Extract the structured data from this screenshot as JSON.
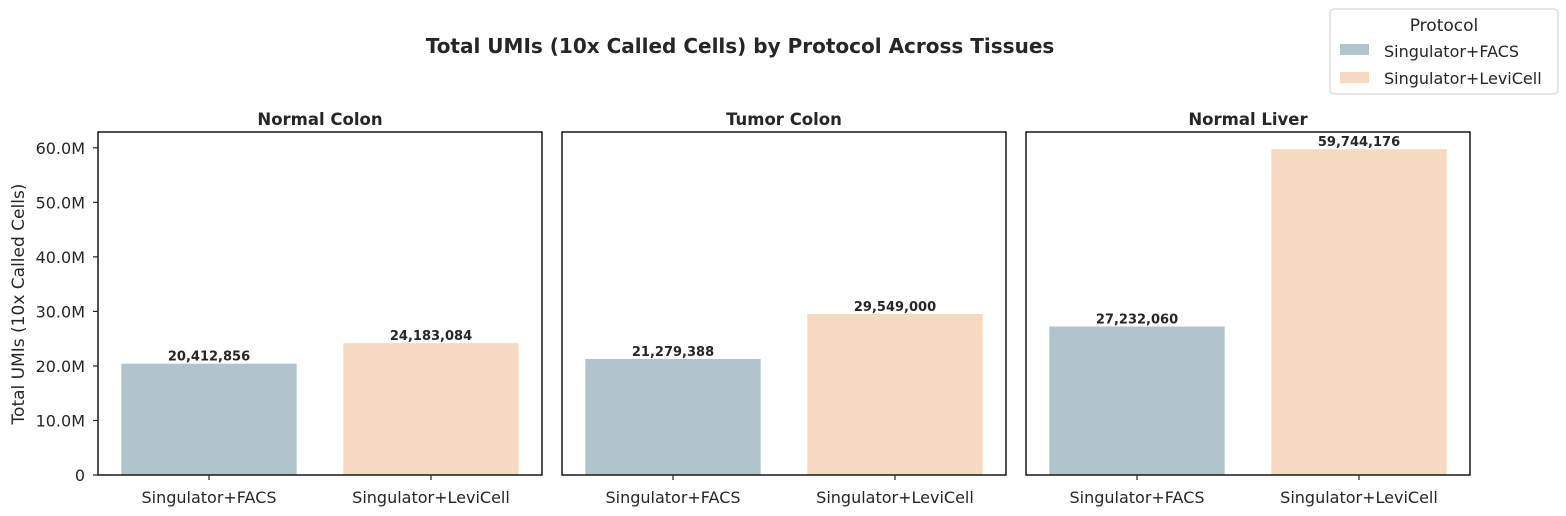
{
  "chart_data": {
    "type": "bar",
    "title": "Total UMIs (10x Called Cells) by Protocol Across Tissues",
    "ylabel": "Total UMIs (10x Called Cells)",
    "ylim": [
      0,
      62900000
    ],
    "yticks": [
      0,
      10000000,
      20000000,
      30000000,
      40000000,
      50000000,
      60000000
    ],
    "ytick_labels": [
      "0",
      "10.0M",
      "20.0M",
      "30.0M",
      "40.0M",
      "50.0M",
      "60.0M"
    ],
    "categories": [
      "Singulator+FACS",
      "Singulator+LeviCell"
    ],
    "grid": false,
    "legend": {
      "title": "Protocol",
      "placement": "top-right",
      "entries": [
        "Singulator+FACS",
        "Singulator+LeviCell"
      ]
    },
    "colors": {
      "Singulator+FACS": "#b1c4cc",
      "Singulator+LeviCell": "#f5d9c1"
    },
    "panels": [
      {
        "title": "Normal Colon",
        "values": [
          20412856,
          24183084
        ],
        "value_labels": [
          "20,412,856",
          "24,183,084"
        ]
      },
      {
        "title": "Tumor Colon",
        "values": [
          21279388,
          29549000
        ],
        "value_labels": [
          "21,279,388",
          "29,549,000"
        ]
      },
      {
        "title": "Normal Liver",
        "values": [
          27232060,
          59744176
        ],
        "value_labels": [
          "27,232,060",
          "59,744,176"
        ]
      }
    ]
  }
}
